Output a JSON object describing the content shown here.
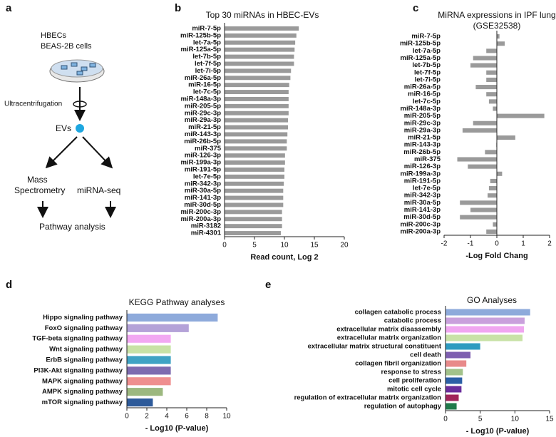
{
  "diagram": {
    "panel": "a",
    "sample": [
      "HBECs",
      "BEAS-2B cells"
    ],
    "process": "Ultracentrifugation",
    "product": "EVs",
    "method_1": [
      "Mass",
      "Spectrometry"
    ],
    "method_2": "miRNA-seq",
    "result": "Pathway analysis"
  },
  "chart_data": [
    {
      "type": "bar",
      "orientation": "horizontal",
      "panel": "b",
      "title": "Top 30 miRNAs in HBEC-EVs",
      "x_label": "Read count, Log 2",
      "categories": [
        "miR-7-5p",
        "miR-125b-5p",
        "let-7a-5p",
        "miR-125a-5p",
        "let-7b-5p",
        "let-7f-5p",
        "let-7i-5p",
        "miR-26a-5p",
        "miR-16-5p",
        "let-7c-5p",
        "miR-148a-3p",
        "miR-205-5p",
        "miR-29c-3p",
        "miR-29a-3p",
        "miR-21-5p",
        "miR-143-3p",
        "miR-26b-5p",
        "miR-375",
        "miR-126-3p",
        "miR-199a-3p",
        "miR-191-5p",
        "let-7e-5p",
        "miR-342-3p",
        "miR-30a-5p",
        "miR-141-3p",
        "miR-30d-5p",
        "miR-200c-3p",
        "miR-200a-3p",
        "miR-3182",
        "miR-4301"
      ],
      "values": [
        12.4,
        12.0,
        11.8,
        11.7,
        11.6,
        11.6,
        11.1,
        11.0,
        10.8,
        10.7,
        10.7,
        10.7,
        10.7,
        10.6,
        10.6,
        10.5,
        10.4,
        10.4,
        10.1,
        10.1,
        10.0,
        10.0,
        9.9,
        9.8,
        9.8,
        9.8,
        9.6,
        9.6,
        9.6,
        9.4
      ],
      "color": "#9a9a9a",
      "xlim": [
        0,
        20
      ],
      "xticks": [
        0,
        5,
        10,
        15,
        20
      ]
    },
    {
      "type": "bar",
      "orientation": "horizontal",
      "panel": "c",
      "title": "MiRNA expressions in IPF lung",
      "subtitle": "(GSE32538)",
      "x_label": "-Log Fold Chang",
      "categories": [
        "miR-7-5p",
        "miR-125b-5p",
        "let-7a-5p",
        "miR-125a-5p",
        "let-7b-5p",
        "let-7f-5p",
        "let-7i-5p",
        "miR-26a-5p",
        "miR-16-5p",
        "let-7c-5p",
        "miR-148a-3p",
        "miR-205-5p",
        "miR-29c-3p",
        "miR-29a-3p",
        "miR-21-5p",
        "miR-143-3p",
        "miR-26b-5p",
        "miR-375",
        "miR-126-3p",
        "miR-199a-3p",
        "miR-191-5p",
        "let-7e-5p",
        "miR-342-3p",
        "miR-30a-5p",
        "miR-141-3p",
        "miR-30d-5p",
        "miR-200c-3p",
        "miR-200a-3p"
      ],
      "values": [
        0.1,
        0.3,
        -0.4,
        -0.9,
        -1.0,
        -0.4,
        -0.4,
        -0.8,
        -0.4,
        -0.3,
        -0.15,
        1.8,
        -0.9,
        -1.3,
        0.7,
        -0.02,
        -0.45,
        -1.5,
        -1.1,
        0.2,
        -0.25,
        -0.3,
        -0.35,
        -1.4,
        -1.0,
        -1.4,
        -0.15,
        -0.4
      ],
      "color": "#9a9a9a",
      "xlim": [
        -2,
        2
      ],
      "xticks": [
        -2,
        -1,
        0,
        1,
        2
      ]
    },
    {
      "type": "bar",
      "orientation": "horizontal",
      "panel": "d",
      "title": "KEGG Pathway analyses",
      "x_label": "- Log10 (P-value)",
      "categories": [
        "Hippo signaling pathway",
        "FoxO signaling pathway",
        "TGF-beta signaling pathway",
        "Wnt signaling pathway",
        "ErbB signaling pathway",
        "PI3K-Akt signaling pathway",
        "MAPK signaling pathway",
        "AMPK signaling pathway",
        "mTOR signaling pathway"
      ],
      "values": [
        9.1,
        6.2,
        4.4,
        4.4,
        4.4,
        4.4,
        4.4,
        3.6,
        2.6
      ],
      "colors": [
        "#8eaadb",
        "#b4a2d8",
        "#f2a8f2",
        "#c8e2a6",
        "#3fa3c4",
        "#7e6bb0",
        "#ef8f8f",
        "#9cb87f",
        "#2d5a9a"
      ],
      "xlim": [
        0,
        10
      ],
      "xticks": [
        0,
        2,
        4,
        6,
        8,
        10
      ]
    },
    {
      "type": "bar",
      "orientation": "horizontal",
      "panel": "e",
      "title": "GO Analyses",
      "x_label": "- Log10 (P-value)",
      "categories": [
        "collagen catabolic process",
        "catabolic process",
        "extracellular matrix disassembly",
        "extracellular matrix organization",
        "extracellular matrix structural constituent",
        "cell death",
        "collagen fibril organization",
        "response to stress",
        "cell proliferation",
        "mitotic cell cycle",
        "regulation of extracellular matrix organization",
        "regulation of autophagy"
      ],
      "values": [
        12.2,
        11.4,
        11.3,
        11.1,
        5.0,
        3.6,
        3.0,
        2.5,
        2.4,
        2.3,
        1.9,
        1.6
      ],
      "colors": [
        "#8eaadb",
        "#c9a0dc",
        "#f0a6f0",
        "#c8e2a6",
        "#2e9bc0",
        "#7e5fb0",
        "#e88a8a",
        "#a2c28a",
        "#2b5fa6",
        "#6a2d9c",
        "#a0245a",
        "#1f7a4a"
      ],
      "xlim": [
        0,
        15
      ],
      "xticks": [
        0,
        5,
        10,
        15
      ]
    }
  ]
}
